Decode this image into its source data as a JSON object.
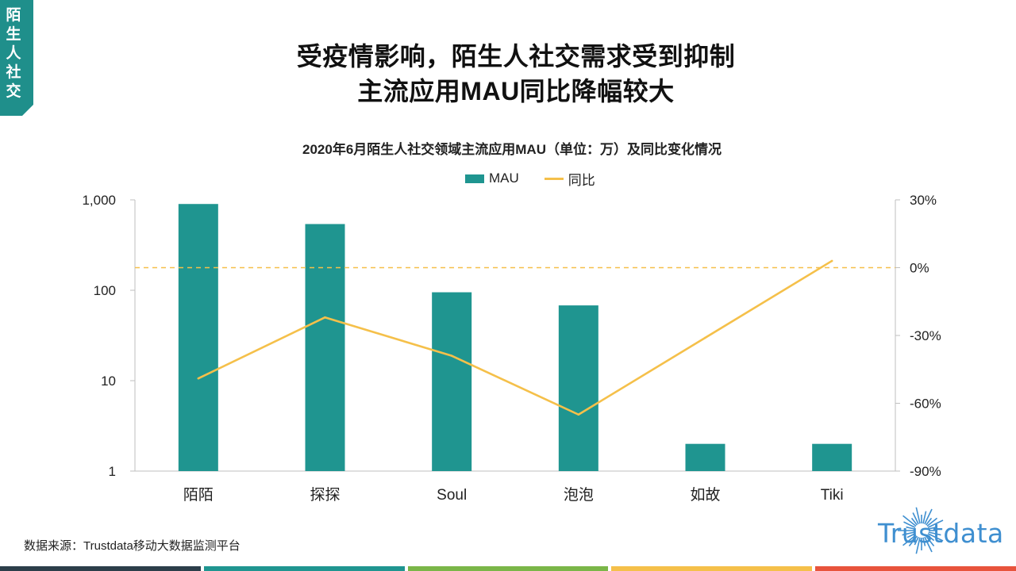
{
  "corner_tag": [
    "陌",
    "生",
    "人",
    "社",
    "交"
  ],
  "title_line1": "受疫情影响，陌生人社交需求受到抑制",
  "title_line2": "主流应用MAU同比降幅较大",
  "chart_data": {
    "type": "bar",
    "title": "2020年6月陌生人社交领域主流应用MAU（单位：万）及同比变化情况",
    "categories": [
      "陌陌",
      "探探",
      "Soul",
      "泡泡",
      "如故",
      "Tiki"
    ],
    "series": [
      {
        "name": "MAU",
        "type": "bar",
        "axis": "left",
        "color": "#1f9590",
        "values": [
          900,
          540,
          95,
          68,
          2,
          2
        ]
      },
      {
        "name": "同比",
        "type": "line",
        "axis": "right",
        "color": "#f5c04a",
        "values": [
          -0.49,
          -0.22,
          -0.39,
          -0.65,
          -0.31,
          0.03
        ]
      }
    ],
    "left_axis": {
      "scale": "log",
      "range": [
        1,
        1000
      ],
      "ticks": [
        "1,000",
        "100",
        "10",
        "1"
      ],
      "tick_values": [
        1000,
        100,
        10,
        1
      ]
    },
    "right_axis": {
      "range": [
        -0.9,
        0.3
      ],
      "ticks": [
        "30%",
        "0%",
        "-30%",
        "-60%",
        "-90%"
      ],
      "tick_values": [
        0.3,
        0,
        -0.3,
        -0.6,
        -0.9
      ]
    },
    "reference_line": {
      "value": 0,
      "style": "dashed",
      "color": "#f5c04a"
    },
    "legend_position": "top-center",
    "grid": false
  },
  "source": "数据来源：Trustdata移动大数据监测平台",
  "logo_text": "Trustdata",
  "bottom_colors": [
    "#2c3e4a",
    "#1f9590",
    "#7ab648",
    "#f5c04a",
    "#e8533c"
  ]
}
